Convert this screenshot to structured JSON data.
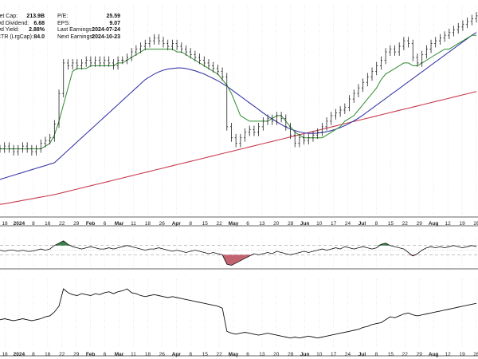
{
  "info": {
    "left": [
      {
        "label": "ket Cap:",
        "value": "213.9B"
      },
      {
        "label": "wd Dividend:",
        "value": "6.68"
      },
      {
        "label": "wd Yield:",
        "value": "2.88%"
      },
      {
        "label": "CTR (LrgCap):",
        "value": "84.0"
      }
    ],
    "right": [
      {
        "label": "P/E:",
        "value": "25.59"
      },
      {
        "label": "EPS:",
        "value": "9.07"
      },
      {
        "label": "Last Earnings:",
        "value": "2024-07-24"
      },
      {
        "label": "Next Earnings:",
        "value": "2024-10-23"
      }
    ]
  },
  "colors": {
    "price": "#222222",
    "ma_short": "#2e8b2e",
    "ma_mid": "#3a3aa8",
    "ma_long": "#c83a4e",
    "osc_fill_positive": "#3f7f4a",
    "osc_fill_negative": "#c26470",
    "grid": "#dddddd",
    "panel_border": "#333333"
  },
  "chart_data": [
    {
      "type": "line",
      "panel": "price",
      "note_type": "ohlc bars with moving averages",
      "x_tick_labels": [
        "18",
        "2024",
        "8",
        "16",
        "22",
        "29",
        "Feb",
        "6",
        "Mar",
        "11",
        "18",
        "26",
        "Apr",
        "8",
        "15",
        "22",
        "May",
        "6",
        "13",
        "20",
        "28",
        "Jun",
        "10",
        "17",
        "24",
        "Jul",
        "8",
        "15",
        "22",
        "29",
        "Aug",
        "12",
        "19",
        "26"
      ],
      "price_close": [
        60,
        61,
        60,
        59,
        60,
        61,
        60,
        59,
        60,
        62,
        63,
        64,
        69,
        80,
        91,
        90,
        91,
        90,
        91,
        92,
        91,
        92,
        91,
        92,
        91,
        90,
        92,
        92,
        93,
        95,
        96,
        97,
        98,
        99,
        100,
        99,
        98,
        97,
        98,
        97,
        96,
        95,
        94,
        93,
        92,
        91,
        90,
        89,
        88,
        86,
        68,
        64,
        62,
        64,
        66,
        67,
        66,
        68,
        70,
        71,
        70,
        72,
        71,
        68,
        65,
        62,
        64,
        63,
        64,
        65,
        66,
        68,
        70,
        72,
        73,
        74,
        75,
        78,
        80,
        82,
        84,
        86,
        88,
        90,
        92,
        95,
        96,
        95,
        97,
        99,
        98,
        93,
        91,
        94,
        96,
        98,
        99,
        100,
        101,
        102,
        103,
        104,
        105,
        106,
        107,
        108
      ],
      "ma_short": [
        60,
        60,
        60,
        60,
        60,
        60,
        60,
        60,
        60,
        60,
        61,
        62,
        65,
        70,
        76,
        82,
        88,
        89,
        89,
        89,
        90,
        90,
        90,
        90,
        90,
        90,
        91,
        91,
        92,
        93,
        94,
        95,
        96,
        96,
        96,
        96,
        96,
        96,
        96,
        95,
        95,
        94,
        93,
        92,
        91,
        90,
        89,
        88,
        87,
        85,
        83,
        80,
        76,
        72,
        71,
        70,
        70,
        70,
        70,
        70,
        71,
        72,
        72,
        70,
        68,
        66,
        65,
        64,
        64,
        64,
        64,
        64,
        65,
        66,
        67,
        68,
        70,
        71,
        72,
        74,
        76,
        78,
        80,
        82,
        85,
        87,
        88,
        89,
        90,
        91,
        91,
        90,
        90,
        91,
        92,
        93,
        94,
        95,
        96,
        96,
        97,
        98,
        99,
        100,
        101,
        101
      ],
      "ma_mid": [
        49,
        49.5,
        50,
        50.5,
        51,
        51.5,
        52,
        52.5,
        53,
        53.5,
        54,
        54.5,
        55,
        56.5,
        58,
        59.5,
        61,
        62.5,
        64,
        65.5,
        67,
        68.5,
        70,
        71.5,
        73,
        74.5,
        76,
        77.5,
        79,
        80.5,
        82,
        83.5,
        85,
        86,
        87,
        87.8,
        88.4,
        88.8,
        89,
        89.2,
        89.2,
        89,
        88.6,
        88.2,
        87.6,
        87,
        86.2,
        85.4,
        84.6,
        83.6,
        82.6,
        81.4,
        80.2,
        79,
        77.8,
        76.6,
        75.4,
        74.2,
        73,
        71.8,
        70.8,
        69.8,
        68.8,
        67.9,
        67.2,
        66.6,
        66.1,
        65.8,
        65.6,
        65.6,
        65.7,
        65.9,
        66.2,
        66.6,
        67.1,
        67.7,
        68.4,
        69.2,
        70.1,
        71.1,
        72.2,
        73.4,
        74.6,
        75.8,
        77,
        78.2,
        79.4,
        80.6,
        81.8,
        83,
        84.2,
        85.4,
        86.6,
        87.8,
        89,
        90.2,
        91.4,
        92.6,
        93.8,
        95,
        96.2,
        97.4,
        98.6,
        99.8,
        101,
        102
      ],
      "ma_long": [
        40,
        40.2,
        40.5,
        40.8,
        41.1,
        41.4,
        41.7,
        42,
        42.3,
        42.6,
        42.9,
        43.2,
        43.5,
        43.9,
        44.3,
        44.7,
        45.1,
        45.5,
        45.9,
        46.3,
        46.7,
        47.1,
        47.5,
        47.9,
        48.3,
        48.7,
        49.1,
        49.5,
        49.9,
        50.3,
        50.7,
        51.1,
        51.5,
        51.9,
        52.3,
        52.7,
        53.1,
        53.5,
        53.9,
        54.3,
        54.7,
        55.1,
        55.5,
        55.9,
        56.3,
        56.7,
        57.1,
        57.5,
        57.9,
        58.3,
        58.7,
        59.1,
        59.5,
        59.9,
        60.3,
        60.7,
        61.1,
        61.5,
        61.9,
        62.3,
        62.7,
        63.1,
        63.5,
        63.9,
        64.3,
        64.7,
        65.1,
        65.5,
        65.9,
        66.3,
        66.7,
        67.1,
        67.5,
        67.9,
        68.3,
        68.7,
        69.1,
        69.5,
        69.9,
        70.3,
        70.7,
        71.1,
        71.5,
        71.9,
        72.3,
        72.7,
        73.1,
        73.5,
        73.9,
        74.3,
        74.7,
        75.1,
        75.5,
        75.9,
        76.3,
        76.7,
        77.1,
        77.5,
        77.9,
        78.3,
        78.7,
        79.1,
        79.5,
        79.9,
        80.3,
        80.7
      ],
      "y_range": [
        36,
        112
      ]
    },
    {
      "type": "area",
      "panel": "oscillator",
      "values": [
        0,
        -1,
        0,
        0,
        -1,
        0,
        -1,
        -1,
        0,
        1,
        0,
        1,
        4,
        6,
        8,
        5,
        3,
        2,
        1,
        2,
        3,
        2,
        1,
        1,
        2,
        1,
        2,
        3,
        4,
        3,
        2,
        1,
        0,
        1,
        1,
        2,
        1,
        0,
        -1,
        0,
        -1,
        -2,
        -1,
        0,
        -1,
        -2,
        -3,
        -2,
        -3,
        -4,
        -12,
        -13,
        -11,
        -9,
        -7,
        -5,
        -3,
        -4,
        -3,
        -2,
        -3,
        -1,
        -2,
        -3,
        -4,
        -3,
        -2,
        -1,
        -2,
        -1,
        0,
        1,
        0,
        1,
        2,
        1,
        3,
        2,
        1,
        2,
        3,
        2,
        1,
        2,
        5,
        6,
        4,
        3,
        2,
        1,
        -2,
        -5,
        -3,
        0,
        2,
        3,
        2,
        3,
        2,
        3,
        4,
        3,
        2,
        3,
        4,
        3
      ],
      "y_range": [
        -16,
        12
      ]
    },
    {
      "type": "line",
      "panel": "relative_strength",
      "values": [
        30,
        31,
        30,
        29,
        30,
        31,
        30,
        29,
        30,
        31,
        33,
        34,
        38,
        44,
        62,
        58,
        56,
        55,
        57,
        56,
        55,
        57,
        56,
        58,
        59,
        57,
        59,
        60,
        62,
        58,
        57,
        55,
        54,
        55,
        56,
        55,
        54,
        53,
        54,
        53,
        52,
        51,
        50,
        49,
        48,
        47,
        46,
        45,
        44,
        42,
        18,
        16,
        15,
        16,
        17,
        16,
        15,
        14,
        15,
        16,
        15,
        14,
        13,
        12,
        11,
        12,
        11,
        12,
        13,
        12,
        11,
        12,
        13,
        14,
        15,
        16,
        17,
        18,
        19,
        20,
        22,
        23,
        25,
        26,
        27,
        30,
        33,
        32,
        34,
        36,
        37,
        35,
        34,
        35,
        36,
        37,
        38,
        39,
        40,
        41,
        42,
        43,
        44,
        45,
        46,
        47
      ],
      "y_range": [
        0,
        72
      ]
    }
  ]
}
